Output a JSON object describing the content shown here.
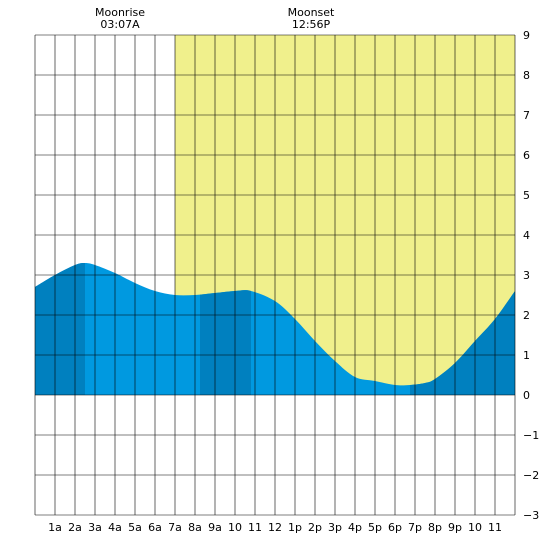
{
  "moon_events": [
    {
      "label": "Moonrise",
      "time": "03:07A",
      "hour": 3.12
    },
    {
      "label": "Moonset",
      "time": "12:56P",
      "hour": 12.93
    }
  ],
  "chart_data": {
    "type": "area",
    "title": "",
    "xlabel": "",
    "ylabel": "",
    "xlim": [
      0,
      24
    ],
    "ylim": [
      -3,
      9
    ],
    "grid": true,
    "x_tick_labels": [
      "1a",
      "2a",
      "3a",
      "4a",
      "5a",
      "6a",
      "7a",
      "8a",
      "9a",
      "10",
      "11",
      "12",
      "1p",
      "2p",
      "3p",
      "4p",
      "5p",
      "6p",
      "7p",
      "8p",
      "9p",
      "10",
      "11"
    ],
    "y_tick_labels": [
      "9",
      "8",
      "7",
      "6",
      "5",
      "4",
      "3",
      "2",
      "1",
      "0",
      "−1",
      "−2",
      "−3"
    ],
    "daylight": {
      "start_hour": 7,
      "end_hour": 24
    },
    "tide_curve": {
      "x": [
        0,
        1,
        2,
        2.5,
        3,
        4,
        5,
        6,
        7,
        8,
        9,
        10,
        10.8,
        12,
        13,
        14,
        15,
        16,
        17,
        18,
        18.75,
        19.5,
        20,
        21,
        22,
        23,
        24
      ],
      "y": [
        2.7,
        3.0,
        3.25,
        3.3,
        3.25,
        3.05,
        2.8,
        2.6,
        2.5,
        2.5,
        2.55,
        2.6,
        2.6,
        2.35,
        1.9,
        1.35,
        0.85,
        0.45,
        0.35,
        0.25,
        0.25,
        0.3,
        0.4,
        0.8,
        1.35,
        1.9,
        2.6
      ]
    },
    "shade_bands": [
      {
        "start_hour": 0,
        "end_hour": 2.5
      },
      {
        "start_hour": 8.25,
        "end_hour": 10.8
      },
      {
        "start_hour": 18.75,
        "end_hour": 24
      }
    ],
    "colors": {
      "daylight": "#f0f08c",
      "tide": "#0099e0",
      "tide_shade": "#0080bf",
      "grid": "#000000",
      "background": "#ffffff"
    }
  }
}
